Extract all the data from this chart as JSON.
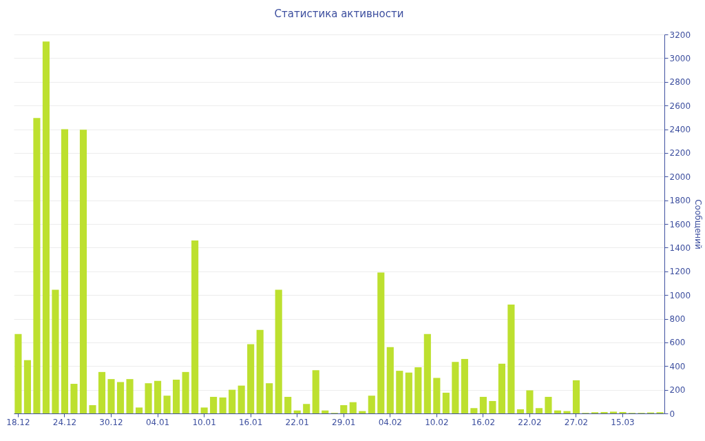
{
  "chart_data": {
    "type": "bar",
    "title": "Статистика активности",
    "y2label": "Сообщений",
    "categories": [
      "18.12",
      null,
      null,
      null,
      null,
      "24.12",
      null,
      null,
      null,
      null,
      "30.12",
      null,
      null,
      null,
      null,
      "04.01",
      null,
      null,
      null,
      null,
      "10.01",
      null,
      null,
      null,
      null,
      "16.01",
      null,
      null,
      null,
      null,
      "22.01",
      null,
      null,
      null,
      null,
      "29.01",
      null,
      null,
      null,
      null,
      "04.02",
      null,
      null,
      null,
      null,
      "10.02",
      null,
      null,
      null,
      null,
      "16.02",
      null,
      null,
      null,
      null,
      "22.02",
      null,
      null,
      null,
      null,
      "27.02",
      null,
      null,
      null,
      null,
      "15.03",
      null,
      null,
      null,
      null
    ],
    "series": [
      {
        "color": "#bde02f",
        "axis": "y2",
        "values": [
          670,
          450,
          2495,
          3140,
          1045,
          2400,
          250,
          2395,
          70,
          350,
          290,
          265,
          290,
          50,
          255,
          275,
          150,
          285,
          350,
          1460,
          50,
          140,
          135,
          200,
          235,
          585,
          705,
          255,
          1045,
          140,
          25,
          80,
          365,
          25,
          5,
          70,
          95,
          20,
          150,
          1190,
          560,
          360,
          345,
          390,
          670,
          300,
          175,
          435,
          460,
          45,
          140,
          105,
          420,
          920,
          35,
          195,
          45,
          140,
          25,
          20,
          280,
          5,
          10,
          12,
          15,
          12,
          5,
          5,
          8,
          10
        ]
      }
    ],
    "y2lim": [
      0,
      3200
    ],
    "y2ticks": [
      0,
      200,
      400,
      600,
      800,
      1000,
      1200,
      1400,
      1600,
      1800,
      2000,
      2200,
      2400,
      2600,
      2800,
      3000,
      3200
    ],
    "grid": "y"
  }
}
